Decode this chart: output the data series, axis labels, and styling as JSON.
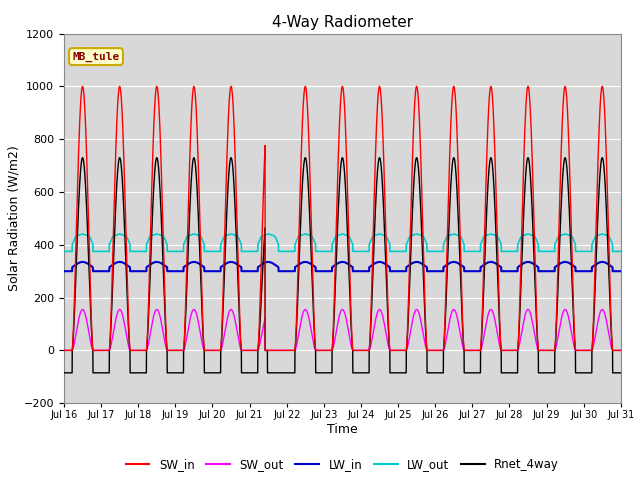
{
  "title": "4-Way Radiometer",
  "xlabel": "Time",
  "ylabel": "Solar Radiation (W/m2)",
  "ylim": [
    -200,
    1200
  ],
  "annotation": "MB_tule",
  "annotation_color": "#8b0000",
  "annotation_bg": "#ffffcc",
  "annotation_edge": "#ccaa00",
  "bg_color": "#d8d8d8",
  "colors": {
    "SW_in": "#ff0000",
    "SW_out": "#ff00ff",
    "LW_in": "#0000cc",
    "LW_out": "#00cccc",
    "Rnet_4way": "#000000"
  },
  "x_tick_labels": [
    "Jul 16",
    "Jul 17",
    "Jul 18",
    "Jul 19",
    "Jul 20",
    "Jul 21",
    "Jul 22",
    "Jul 23",
    "Jul 24",
    "Jul 25",
    "Jul 26",
    "Jul 27",
    "Jul 28",
    "Jul 29",
    "Jul 30",
    "Jul 31"
  ],
  "num_days": 15,
  "samples_per_day": 288,
  "SW_in_peak": 1000,
  "SW_out_ratio": 0.155,
  "LW_in_base": 300,
  "LW_in_amp": 35,
  "LW_out_base": 375,
  "LW_out_amp": 65,
  "Rnet_peak": 730,
  "night_Rnet": -85,
  "cloudy_day": 5,
  "day_start": 0.22,
  "day_end": 0.78
}
